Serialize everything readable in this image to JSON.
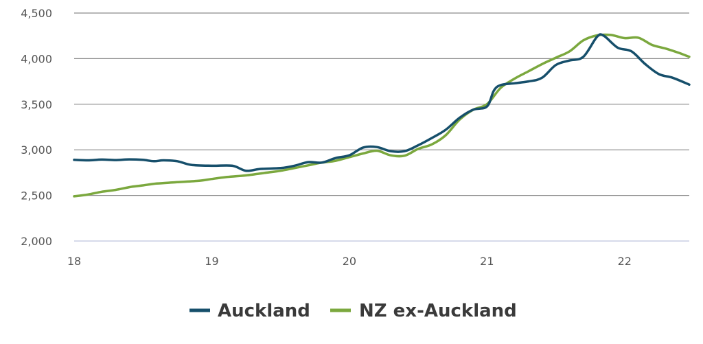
{
  "chart_data": {
    "type": "line",
    "title": "",
    "xlabel": "",
    "ylabel": "",
    "xlim": [
      18,
      22.47
    ],
    "ylim": [
      2000,
      4500
    ],
    "x_ticks": [
      18,
      19,
      20,
      21,
      22
    ],
    "x_tick_labels": [
      "18",
      "19",
      "20",
      "21",
      "22"
    ],
    "y_ticks": [
      2000,
      2500,
      3000,
      3500,
      4000,
      4500
    ],
    "y_tick_labels": [
      "2,000",
      "2,500",
      "3,000",
      "3,500",
      "4,000",
      "4,500"
    ],
    "grid": "horizontal",
    "legend_position": "bottom",
    "series": [
      {
        "name": "Auckland",
        "color": "#164f6b",
        "points": [
          [
            18.0,
            2890
          ],
          [
            18.1,
            2885
          ],
          [
            18.2,
            2893
          ],
          [
            18.3,
            2888
          ],
          [
            18.4,
            2895
          ],
          [
            18.5,
            2890
          ],
          [
            18.58,
            2875
          ],
          [
            18.65,
            2885
          ],
          [
            18.75,
            2875
          ],
          [
            18.85,
            2835
          ],
          [
            19.0,
            2825
          ],
          [
            19.15,
            2825
          ],
          [
            19.25,
            2770
          ],
          [
            19.35,
            2790
          ],
          [
            19.5,
            2800
          ],
          [
            19.6,
            2825
          ],
          [
            19.7,
            2865
          ],
          [
            19.8,
            2860
          ],
          [
            19.9,
            2910
          ],
          [
            20.0,
            2940
          ],
          [
            20.1,
            3025
          ],
          [
            20.2,
            3030
          ],
          [
            20.3,
            2985
          ],
          [
            20.4,
            2985
          ],
          [
            20.5,
            3050
          ],
          [
            20.6,
            3130
          ],
          [
            20.7,
            3220
          ],
          [
            20.8,
            3350
          ],
          [
            20.9,
            3440
          ],
          [
            21.0,
            3475
          ],
          [
            21.05,
            3650
          ],
          [
            21.1,
            3710
          ],
          [
            21.2,
            3730
          ],
          [
            21.3,
            3750
          ],
          [
            21.4,
            3790
          ],
          [
            21.5,
            3930
          ],
          [
            21.6,
            3980
          ],
          [
            21.7,
            4020
          ],
          [
            21.8,
            4240
          ],
          [
            21.85,
            4250
          ],
          [
            21.95,
            4120
          ],
          [
            22.05,
            4080
          ],
          [
            22.15,
            3940
          ],
          [
            22.25,
            3830
          ],
          [
            22.35,
            3790
          ],
          [
            22.47,
            3715
          ]
        ]
      },
      {
        "name": "NZ ex-Auckland",
        "color": "#7ba83e",
        "points": [
          [
            18.0,
            2490
          ],
          [
            18.1,
            2510
          ],
          [
            18.2,
            2540
          ],
          [
            18.3,
            2560
          ],
          [
            18.4,
            2590
          ],
          [
            18.5,
            2610
          ],
          [
            18.6,
            2630
          ],
          [
            18.75,
            2645
          ],
          [
            18.9,
            2660
          ],
          [
            19.0,
            2680
          ],
          [
            19.1,
            2700
          ],
          [
            19.25,
            2720
          ],
          [
            19.4,
            2750
          ],
          [
            19.5,
            2770
          ],
          [
            19.6,
            2800
          ],
          [
            19.7,
            2830
          ],
          [
            19.8,
            2860
          ],
          [
            19.9,
            2880
          ],
          [
            20.0,
            2920
          ],
          [
            20.1,
            2960
          ],
          [
            20.2,
            2990
          ],
          [
            20.3,
            2940
          ],
          [
            20.4,
            2935
          ],
          [
            20.5,
            3010
          ],
          [
            20.6,
            3060
          ],
          [
            20.7,
            3160
          ],
          [
            20.8,
            3330
          ],
          [
            20.9,
            3440
          ],
          [
            21.0,
            3500
          ],
          [
            21.1,
            3680
          ],
          [
            21.2,
            3780
          ],
          [
            21.3,
            3860
          ],
          [
            21.4,
            3940
          ],
          [
            21.5,
            4010
          ],
          [
            21.6,
            4080
          ],
          [
            21.7,
            4200
          ],
          [
            21.8,
            4255
          ],
          [
            21.9,
            4260
          ],
          [
            22.0,
            4225
          ],
          [
            22.1,
            4230
          ],
          [
            22.2,
            4150
          ],
          [
            22.3,
            4110
          ],
          [
            22.4,
            4060
          ],
          [
            22.47,
            4020
          ]
        ]
      }
    ]
  }
}
